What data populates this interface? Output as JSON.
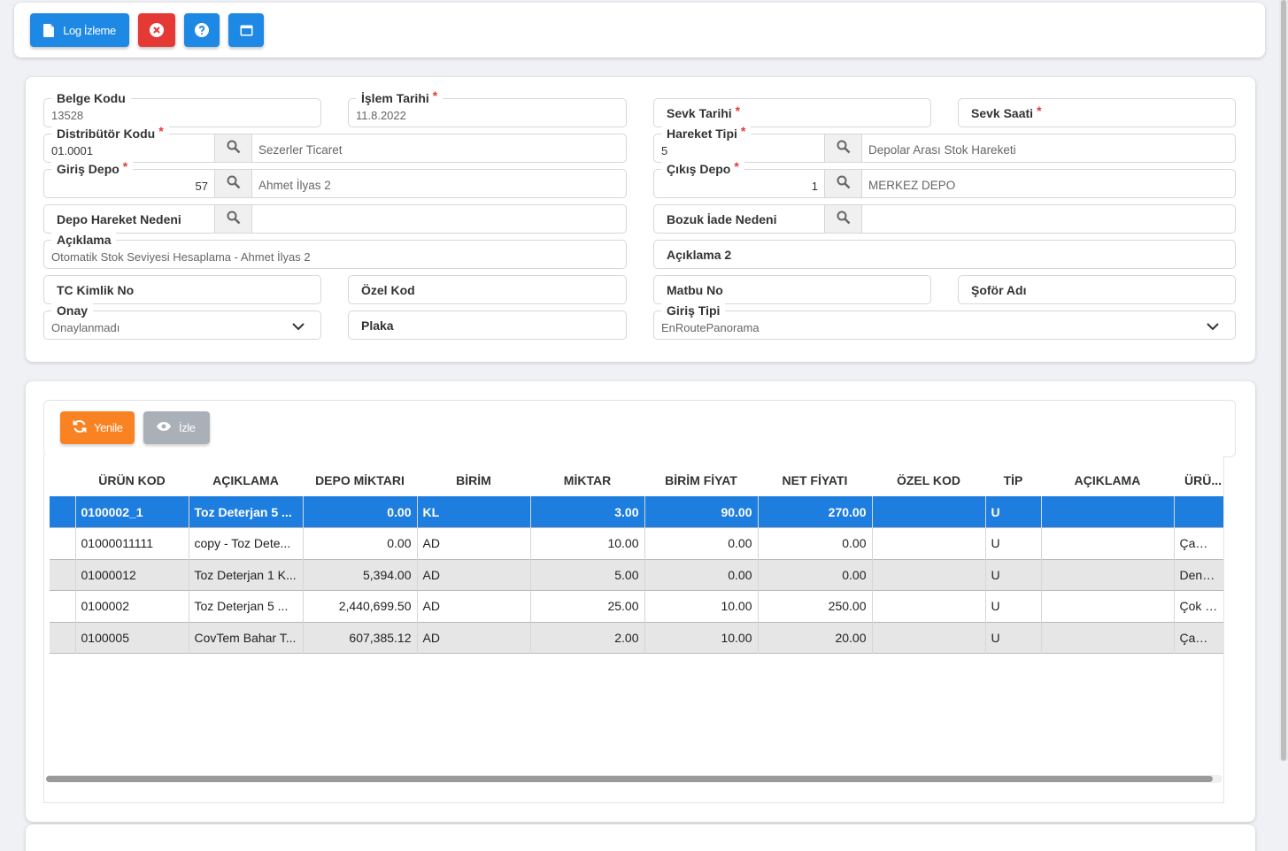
{
  "toolbar": {
    "log_label": "Log İzleme",
    "icons": [
      "document-icon",
      "close-circle-icon",
      "help-icon",
      "window-icon"
    ]
  },
  "form": {
    "belge_kodu": {
      "label": "Belge Kodu",
      "value": "13528"
    },
    "islem_tarihi": {
      "label": "İşlem Tarihi",
      "value": "11.8.2022"
    },
    "sevk_tarihi": {
      "label": "Sevk Tarihi"
    },
    "sevk_saati": {
      "label": "Sevk Saati"
    },
    "distributor_kodu": {
      "label": "Distribütör Kodu",
      "code": "01.0001",
      "desc": "Sezerler Ticaret"
    },
    "hareket_tipi": {
      "label": "Hareket Tipi",
      "code": "5",
      "desc": "Depolar Arası Stok Hareketi"
    },
    "giris_depo": {
      "label": "Giriş Depo",
      "code": "57",
      "desc": "Ahmet İlyas 2"
    },
    "cikis_depo": {
      "label": "Çıkış Depo",
      "code": "1",
      "desc": "MERKEZ DEPO"
    },
    "depo_hareket_nedeni": {
      "label": "Depo Hareket Nedeni"
    },
    "bozuk_iade_nedeni": {
      "label": "Bozuk İade Nedeni"
    },
    "aciklama": {
      "label": "Açıklama",
      "value": "Otomatik Stok Seviyesi Hesaplama - Ahmet İlyas 2"
    },
    "aciklama2": {
      "label": "Açıklama 2"
    },
    "tc_kimlik_no": {
      "label": "TC Kimlik No"
    },
    "ozel_kod": {
      "label": "Özel Kod"
    },
    "matbu_no": {
      "label": "Matbu No"
    },
    "sofor_adi": {
      "label": "Şoför Adı"
    },
    "onay": {
      "label": "Onay",
      "value": "Onaylanmadı"
    },
    "plaka": {
      "label": "Plaka"
    },
    "giris_tipi": {
      "label": "Giriş Tipi",
      "value": "EnRoutePanorama"
    },
    "required_mark": "*"
  },
  "grid": {
    "refresh_label": "Yenile",
    "view_label": "İzle",
    "columns": [
      "ÜRÜN KOD",
      "AÇIKLAMA",
      "DEPO MİKTARI",
      "BİRİM",
      "MİKTAR",
      "BİRİM FİYAT",
      "NET FİYATI",
      "ÖZEL KOD",
      "TİP",
      "AÇIKLAMA",
      "ÜRÜ..."
    ],
    "rows": [
      [
        "0100002_1",
        "Toz Deterjan 5 ...",
        "0.00",
        "KL",
        "3.00",
        "90.00",
        "270.00",
        "",
        "U",
        "",
        ""
      ],
      [
        "01000011111",
        "copy - Toz Dete...",
        "0.00",
        "AD",
        "10.00",
        "0.00",
        "0.00",
        "",
        "U",
        "",
        "Çama..."
      ],
      [
        "01000012",
        "Toz Deterjan 1 K...",
        "5,394.00",
        "AD",
        "5.00",
        "0.00",
        "0.00",
        "",
        "U",
        "",
        "Dene..."
      ],
      [
        "0100002",
        "Toz Deterjan 5 ...",
        "2,440,699.50",
        "AD",
        "25.00",
        "10.00",
        "250.00",
        "",
        "U",
        "",
        "Çok S..."
      ],
      [
        "0100005",
        "CovTem Bahar T...",
        "607,385.12",
        "AD",
        "2.00",
        "10.00",
        "20.00",
        "",
        "U",
        "",
        "Çama..."
      ]
    ]
  },
  "colors": {
    "primary": "#1e88e5",
    "danger": "#e53935",
    "warning": "#f98323",
    "muted": "#aab0b7",
    "selected_row": "#1e7ee0"
  }
}
